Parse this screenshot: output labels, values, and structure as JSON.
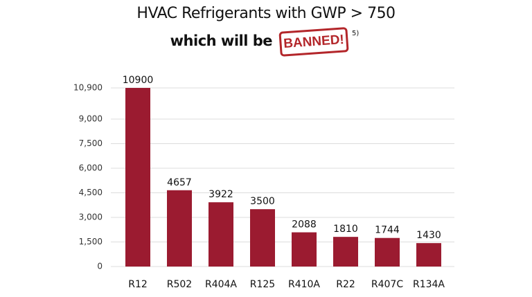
{
  "chart_data": {
    "type": "bar",
    "title": "HVAC Refrigerants with GWP > 750",
    "subtitle": "which will be",
    "annotations": [
      "BANNED!",
      "5)"
    ],
    "categories": [
      "R12",
      "R502",
      "R404A",
      "R125",
      "R410A",
      "R22",
      "R407C",
      "R134A"
    ],
    "values": [
      10900,
      4657,
      3922,
      3500,
      2088,
      1810,
      1744,
      1430
    ],
    "color": "#9b1b30",
    "ylim": [
      0,
      10900
    ],
    "yticks": [
      0,
      {
        "value": 1500,
        "label": "1,500"
      },
      {
        "value": 3000,
        "label": "3,000"
      },
      {
        "value": 4500,
        "label": "4,500"
      },
      {
        "value": 6000,
        "label": "6,000"
      },
      {
        "value": 7500,
        "label": "7,500"
      },
      {
        "value": 9000,
        "label": "9,000"
      },
      {
        "value": 10900,
        "label": "10,900"
      }
    ],
    "grid": true
  }
}
